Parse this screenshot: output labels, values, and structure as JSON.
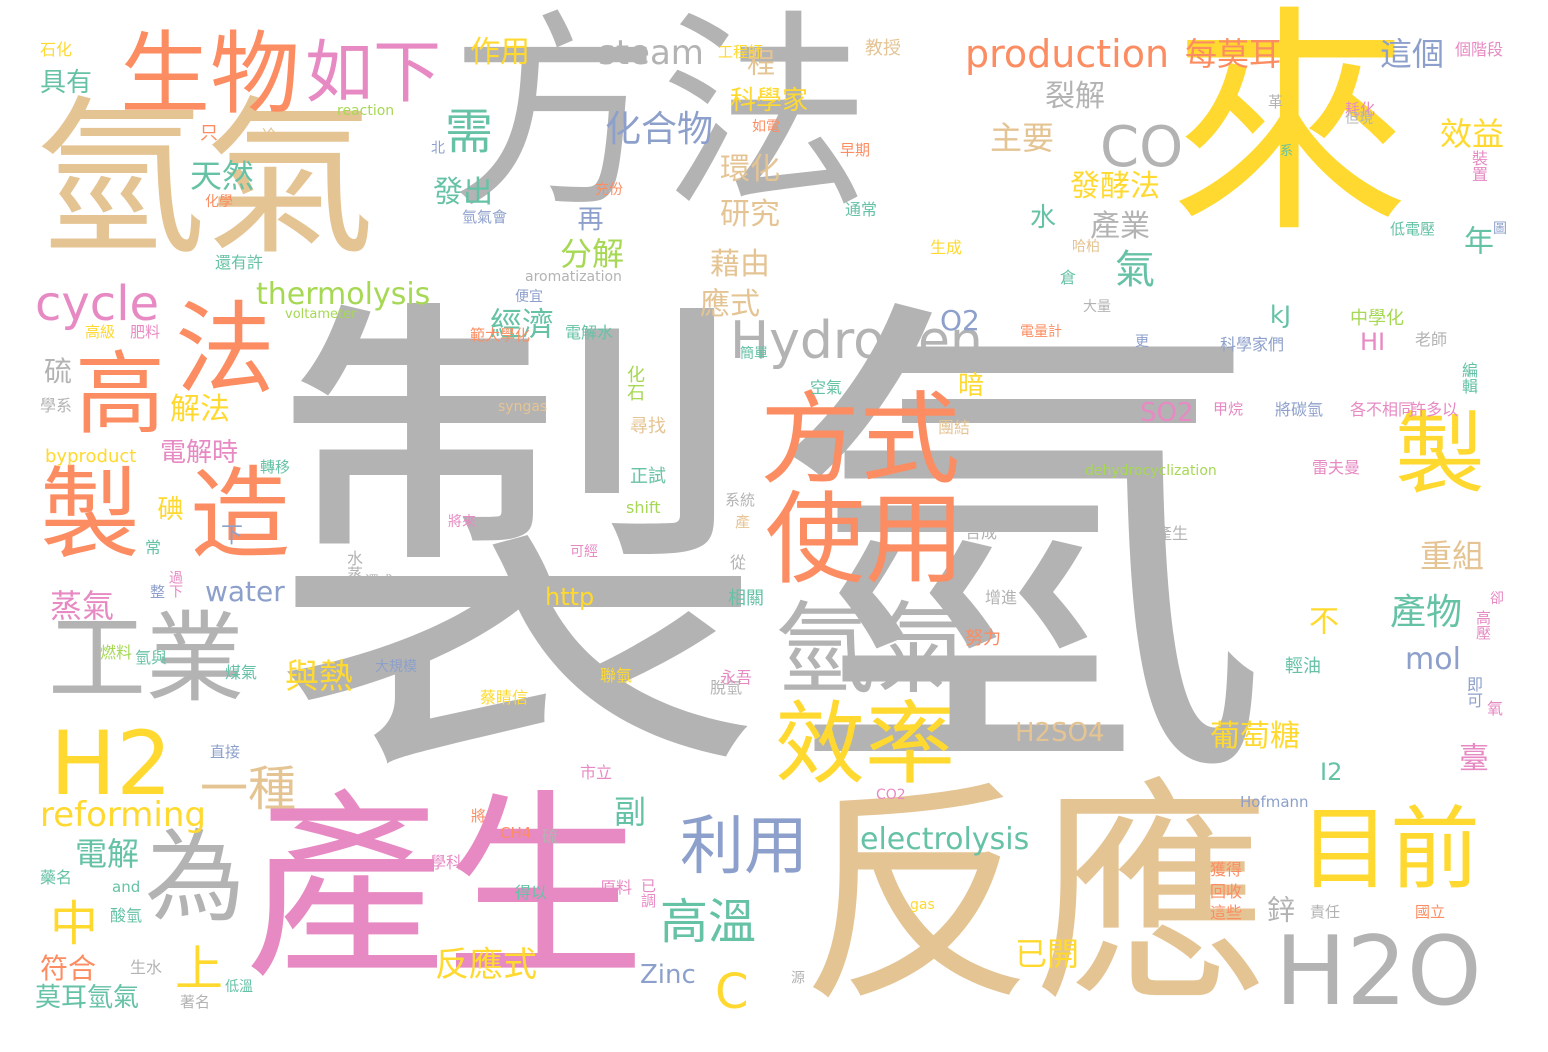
{
  "palette": {
    "gray": "#b3b3b3",
    "gold": "#ffd92f",
    "tan": "#e5c494",
    "pink": "#e78ac3",
    "orange": "#fc8d62",
    "green": "#a6d854",
    "teal": "#66c2a5",
    "blue": "#8da0cb"
  },
  "words": [
    {
      "text": "製氫",
      "color": "gray"
    },
    {
      "text": "方法",
      "color": "gray"
    },
    {
      "text": "來",
      "color": "gold"
    },
    {
      "text": "氫氣",
      "color": "tan"
    },
    {
      "text": "反應",
      "color": "tan"
    },
    {
      "text": "產生",
      "color": "pink"
    },
    {
      "text": "生物",
      "color": "orange"
    },
    {
      "text": "如下",
      "color": "pink"
    },
    {
      "text": "法",
      "color": "orange"
    },
    {
      "text": "高",
      "color": "orange"
    },
    {
      "text": "製",
      "color": "orange"
    },
    {
      "text": "造",
      "color": "orange"
    },
    {
      "text": "工業",
      "color": "gray"
    },
    {
      "text": "H2",
      "color": "gold"
    },
    {
      "text": "為",
      "color": "gray"
    },
    {
      "text": "方式",
      "color": "orange"
    },
    {
      "text": "使用",
      "color": "orange"
    },
    {
      "text": "氫氣",
      "color": "gray"
    },
    {
      "text": "效率",
      "color": "gold"
    },
    {
      "text": "目前",
      "color": "gold"
    },
    {
      "text": "H2O",
      "color": "gray"
    },
    {
      "text": "製",
      "color": "gold"
    },
    {
      "text": "Hydrogen",
      "color": "gray"
    },
    {
      "text": "CO",
      "color": "gray"
    },
    {
      "text": "steam",
      "color": "gray"
    },
    {
      "text": "production",
      "color": "orange"
    },
    {
      "text": "每莫耳",
      "color": "orange"
    },
    {
      "text": "這個",
      "color": "blue"
    },
    {
      "text": "作用",
      "color": "gold"
    },
    {
      "text": "cycle",
      "color": "pink"
    },
    {
      "text": "thermolysis",
      "color": "green"
    },
    {
      "text": "reforming",
      "color": "gold"
    },
    {
      "text": "electrolysis",
      "color": "teal"
    },
    {
      "text": "化合物",
      "color": "blue"
    },
    {
      "text": "需",
      "color": "teal"
    },
    {
      "text": "利用",
      "color": "blue"
    },
    {
      "text": "高溫",
      "color": "teal"
    },
    {
      "text": "中",
      "color": "gold"
    },
    {
      "text": "上",
      "color": "gold"
    },
    {
      "text": "一種",
      "color": "tan"
    },
    {
      "text": "電解",
      "color": "teal"
    },
    {
      "text": "蒸氣",
      "color": "pink"
    },
    {
      "text": "water",
      "color": "blue"
    },
    {
      "text": "Zinc",
      "color": "blue"
    },
    {
      "text": "反應式",
      "color": "gold"
    },
    {
      "text": "C",
      "color": "gold"
    },
    {
      "text": "天然",
      "color": "teal"
    },
    {
      "text": "具有",
      "color": "teal"
    },
    {
      "text": "石化",
      "color": "gold"
    },
    {
      "text": "主要",
      "color": "tan"
    },
    {
      "text": "裂解",
      "color": "gray"
    },
    {
      "text": "發酵法",
      "color": "gold"
    },
    {
      "text": "產業",
      "color": "gray"
    },
    {
      "text": "氣",
      "color": "teal"
    },
    {
      "text": "效益",
      "color": "gold"
    },
    {
      "text": "年",
      "color": "teal"
    },
    {
      "text": "重組",
      "color": "tan"
    },
    {
      "text": "產物",
      "color": "teal"
    },
    {
      "text": "mol",
      "color": "blue"
    },
    {
      "text": "I2",
      "color": "teal"
    },
    {
      "text": "葡萄糖",
      "color": "gold"
    },
    {
      "text": "臺",
      "color": "pink"
    },
    {
      "text": "鋅",
      "color": "gray"
    },
    {
      "text": "已開",
      "color": "gold"
    },
    {
      "text": "H2SO4",
      "color": "tan"
    },
    {
      "text": "SO2",
      "color": "pink"
    },
    {
      "text": "HI",
      "color": "pink"
    },
    {
      "text": "kJ",
      "color": "teal"
    },
    {
      "text": "O2",
      "color": "blue"
    },
    {
      "text": "暗",
      "color": "gold"
    },
    {
      "text": "經濟",
      "color": "teal"
    },
    {
      "text": "分解",
      "color": "green"
    },
    {
      "text": "發出",
      "color": "teal"
    },
    {
      "text": "再",
      "color": "blue"
    },
    {
      "text": "藉由",
      "color": "tan"
    },
    {
      "text": "應式",
      "color": "tan"
    },
    {
      "text": "研究",
      "color": "tan"
    },
    {
      "text": "環化",
      "color": "tan"
    },
    {
      "text": "科學家",
      "color": "gold"
    },
    {
      "text": "程",
      "color": "tan"
    },
    {
      "text": "水",
      "color": "teal"
    },
    {
      "text": "與熱",
      "color": "gold"
    },
    {
      "text": "副",
      "color": "teal"
    },
    {
      "text": "不",
      "color": "gold"
    },
    {
      "text": "解法",
      "color": "gold"
    },
    {
      "text": "電解時",
      "color": "pink"
    },
    {
      "text": "硫",
      "color": "gray"
    },
    {
      "text": "碘",
      "color": "gold"
    },
    {
      "text": "下",
      "color": "blue"
    },
    {
      "text": "符合",
      "color": "orange"
    },
    {
      "text": "莫耳氫氣",
      "color": "teal"
    },
    {
      "text": "http",
      "color": "gold"
    },
    {
      "text": "byproduct",
      "color": "gold"
    },
    {
      "text": "syngas",
      "color": "tan"
    },
    {
      "text": "shift",
      "color": "green"
    },
    {
      "text": "dehydrocyclization",
      "color": "green"
    },
    {
      "text": "aromatization",
      "color": "gray"
    },
    {
      "text": "voltameter",
      "color": "green"
    },
    {
      "text": "reaction",
      "color": "green"
    },
    {
      "text": "Hofmann",
      "color": "blue"
    },
    {
      "text": "gas",
      "color": "gold"
    },
    {
      "text": "and",
      "color": "teal"
    },
    {
      "text": "CH4",
      "color": "orange"
    },
    {
      "text": "CO2",
      "color": "pink"
    },
    {
      "text": "教授",
      "color": "tan"
    },
    {
      "text": "個階段",
      "color": "pink"
    },
    {
      "text": "耗化",
      "color": "pink"
    },
    {
      "text": "系",
      "color": "teal"
    },
    {
      "text": "但現",
      "color": "gray"
    },
    {
      "text": "裝置",
      "color": "pink"
    },
    {
      "text": "低電壓",
      "color": "teal"
    },
    {
      "text": "中學化",
      "color": "green"
    },
    {
      "text": "老師",
      "color": "gray"
    },
    {
      "text": "科學家們",
      "color": "blue"
    },
    {
      "text": "將碳氫",
      "color": "blue"
    },
    {
      "text": "各不相同",
      "color": "pink"
    },
    {
      "text": "許多以",
      "color": "pink"
    },
    {
      "text": "甲烷",
      "color": "pink"
    },
    {
      "text": "編輯",
      "color": "teal"
    },
    {
      "text": "雷夫曼",
      "color": "pink"
    },
    {
      "text": "所產生",
      "color": "gray"
    },
    {
      "text": "輕油",
      "color": "teal"
    },
    {
      "text": "即可",
      "color": "blue"
    },
    {
      "text": "高壓",
      "color": "pink"
    },
    {
      "text": "卻",
      "color": "pink"
    },
    {
      "text": "氧",
      "color": "pink"
    },
    {
      "text": "國立",
      "color": "orange"
    },
    {
      "text": "責任",
      "color": "gray"
    },
    {
      "text": "獲得",
      "color": "orange"
    },
    {
      "text": "回收",
      "color": "orange"
    },
    {
      "text": "這些",
      "color": "orange"
    },
    {
      "text": "增進",
      "color": "gray"
    },
    {
      "text": "排放",
      "color": "gray"
    },
    {
      "text": "努力",
      "color": "orange"
    },
    {
      "text": "合成",
      "color": "gray"
    },
    {
      "text": "脫氫",
      "color": "gray"
    },
    {
      "text": "永吾",
      "color": "pink"
    },
    {
      "text": "相關",
      "color": "teal"
    },
    {
      "text": "從",
      "color": "gray"
    },
    {
      "text": "可經",
      "color": "pink"
    },
    {
      "text": "產",
      "color": "tan"
    },
    {
      "text": "系統",
      "color": "gray"
    },
    {
      "text": "正試",
      "color": "teal"
    },
    {
      "text": "尋找",
      "color": "tan"
    },
    {
      "text": "團結",
      "color": "tan"
    },
    {
      "text": "空氣",
      "color": "teal"
    },
    {
      "text": "簡單",
      "color": "teal"
    },
    {
      "text": "化石",
      "color": "green"
    },
    {
      "text": "水蒸",
      "color": "gray"
    },
    {
      "text": "還成",
      "color": "gray"
    },
    {
      "text": "將來",
      "color": "pink"
    },
    {
      "text": "大規模",
      "color": "blue"
    },
    {
      "text": "聯氫",
      "color": "gold"
    },
    {
      "text": "蔡睛信",
      "color": "gold"
    },
    {
      "text": "市立",
      "color": "pink"
    },
    {
      "text": "學科",
      "color": "pink"
    },
    {
      "text": "得以",
      "color": "teal"
    },
    {
      "text": "原料",
      "color": "pink"
    },
    {
      "text": "已調",
      "color": "pink"
    },
    {
      "text": "將",
      "color": "orange"
    },
    {
      "text": "硫",
      "color": "gray"
    },
    {
      "text": "源",
      "color": "gray"
    },
    {
      "text": "直接",
      "color": "blue"
    },
    {
      "text": "煤氣",
      "color": "teal"
    },
    {
      "text": "燃料",
      "color": "green"
    },
    {
      "text": "低溫",
      "color": "teal"
    },
    {
      "text": "生水",
      "color": "gray"
    },
    {
      "text": "著名",
      "color": "gray"
    },
    {
      "text": "整",
      "color": "blue"
    },
    {
      "text": "過下",
      "color": "pink"
    },
    {
      "text": "常",
      "color": "teal"
    },
    {
      "text": "氫與",
      "color": "teal"
    },
    {
      "text": "轉移",
      "color": "teal"
    },
    {
      "text": "學系",
      "color": "gray"
    },
    {
      "text": "肥料",
      "color": "pink"
    },
    {
      "text": "高級",
      "color": "gold"
    },
    {
      "text": "還有許",
      "color": "teal"
    },
    {
      "text": "化學",
      "color": "orange"
    },
    {
      "text": "氫氣會",
      "color": "blue"
    },
    {
      "text": "充份",
      "color": "orange"
    },
    {
      "text": "如電",
      "color": "orange"
    },
    {
      "text": "只",
      "color": "orange"
    },
    {
      "text": "冷",
      "color": "tan"
    },
    {
      "text": "北",
      "color": "blue"
    },
    {
      "text": "範大學化",
      "color": "orange"
    },
    {
      "text": "電解水",
      "color": "teal"
    },
    {
      "text": "大量",
      "color": "gray"
    },
    {
      "text": "電量計",
      "color": "orange"
    },
    {
      "text": "便宜",
      "color": "blue"
    },
    {
      "text": "通常",
      "color": "teal"
    },
    {
      "text": "生成",
      "color": "gold"
    },
    {
      "text": "哈柏",
      "color": "tan"
    },
    {
      "text": "倉",
      "color": "teal"
    },
    {
      "text": "更",
      "color": "blue"
    },
    {
      "text": "圖",
      "color": "blue"
    },
    {
      "text": "革",
      "color": "gray"
    },
    {
      "text": "工程師",
      "color": "gold"
    },
    {
      "text": "早期",
      "color": "orange"
    },
    {
      "text": "藥名",
      "color": "teal"
    },
    {
      "text": "酸氫",
      "color": "teal"
    }
  ]
}
